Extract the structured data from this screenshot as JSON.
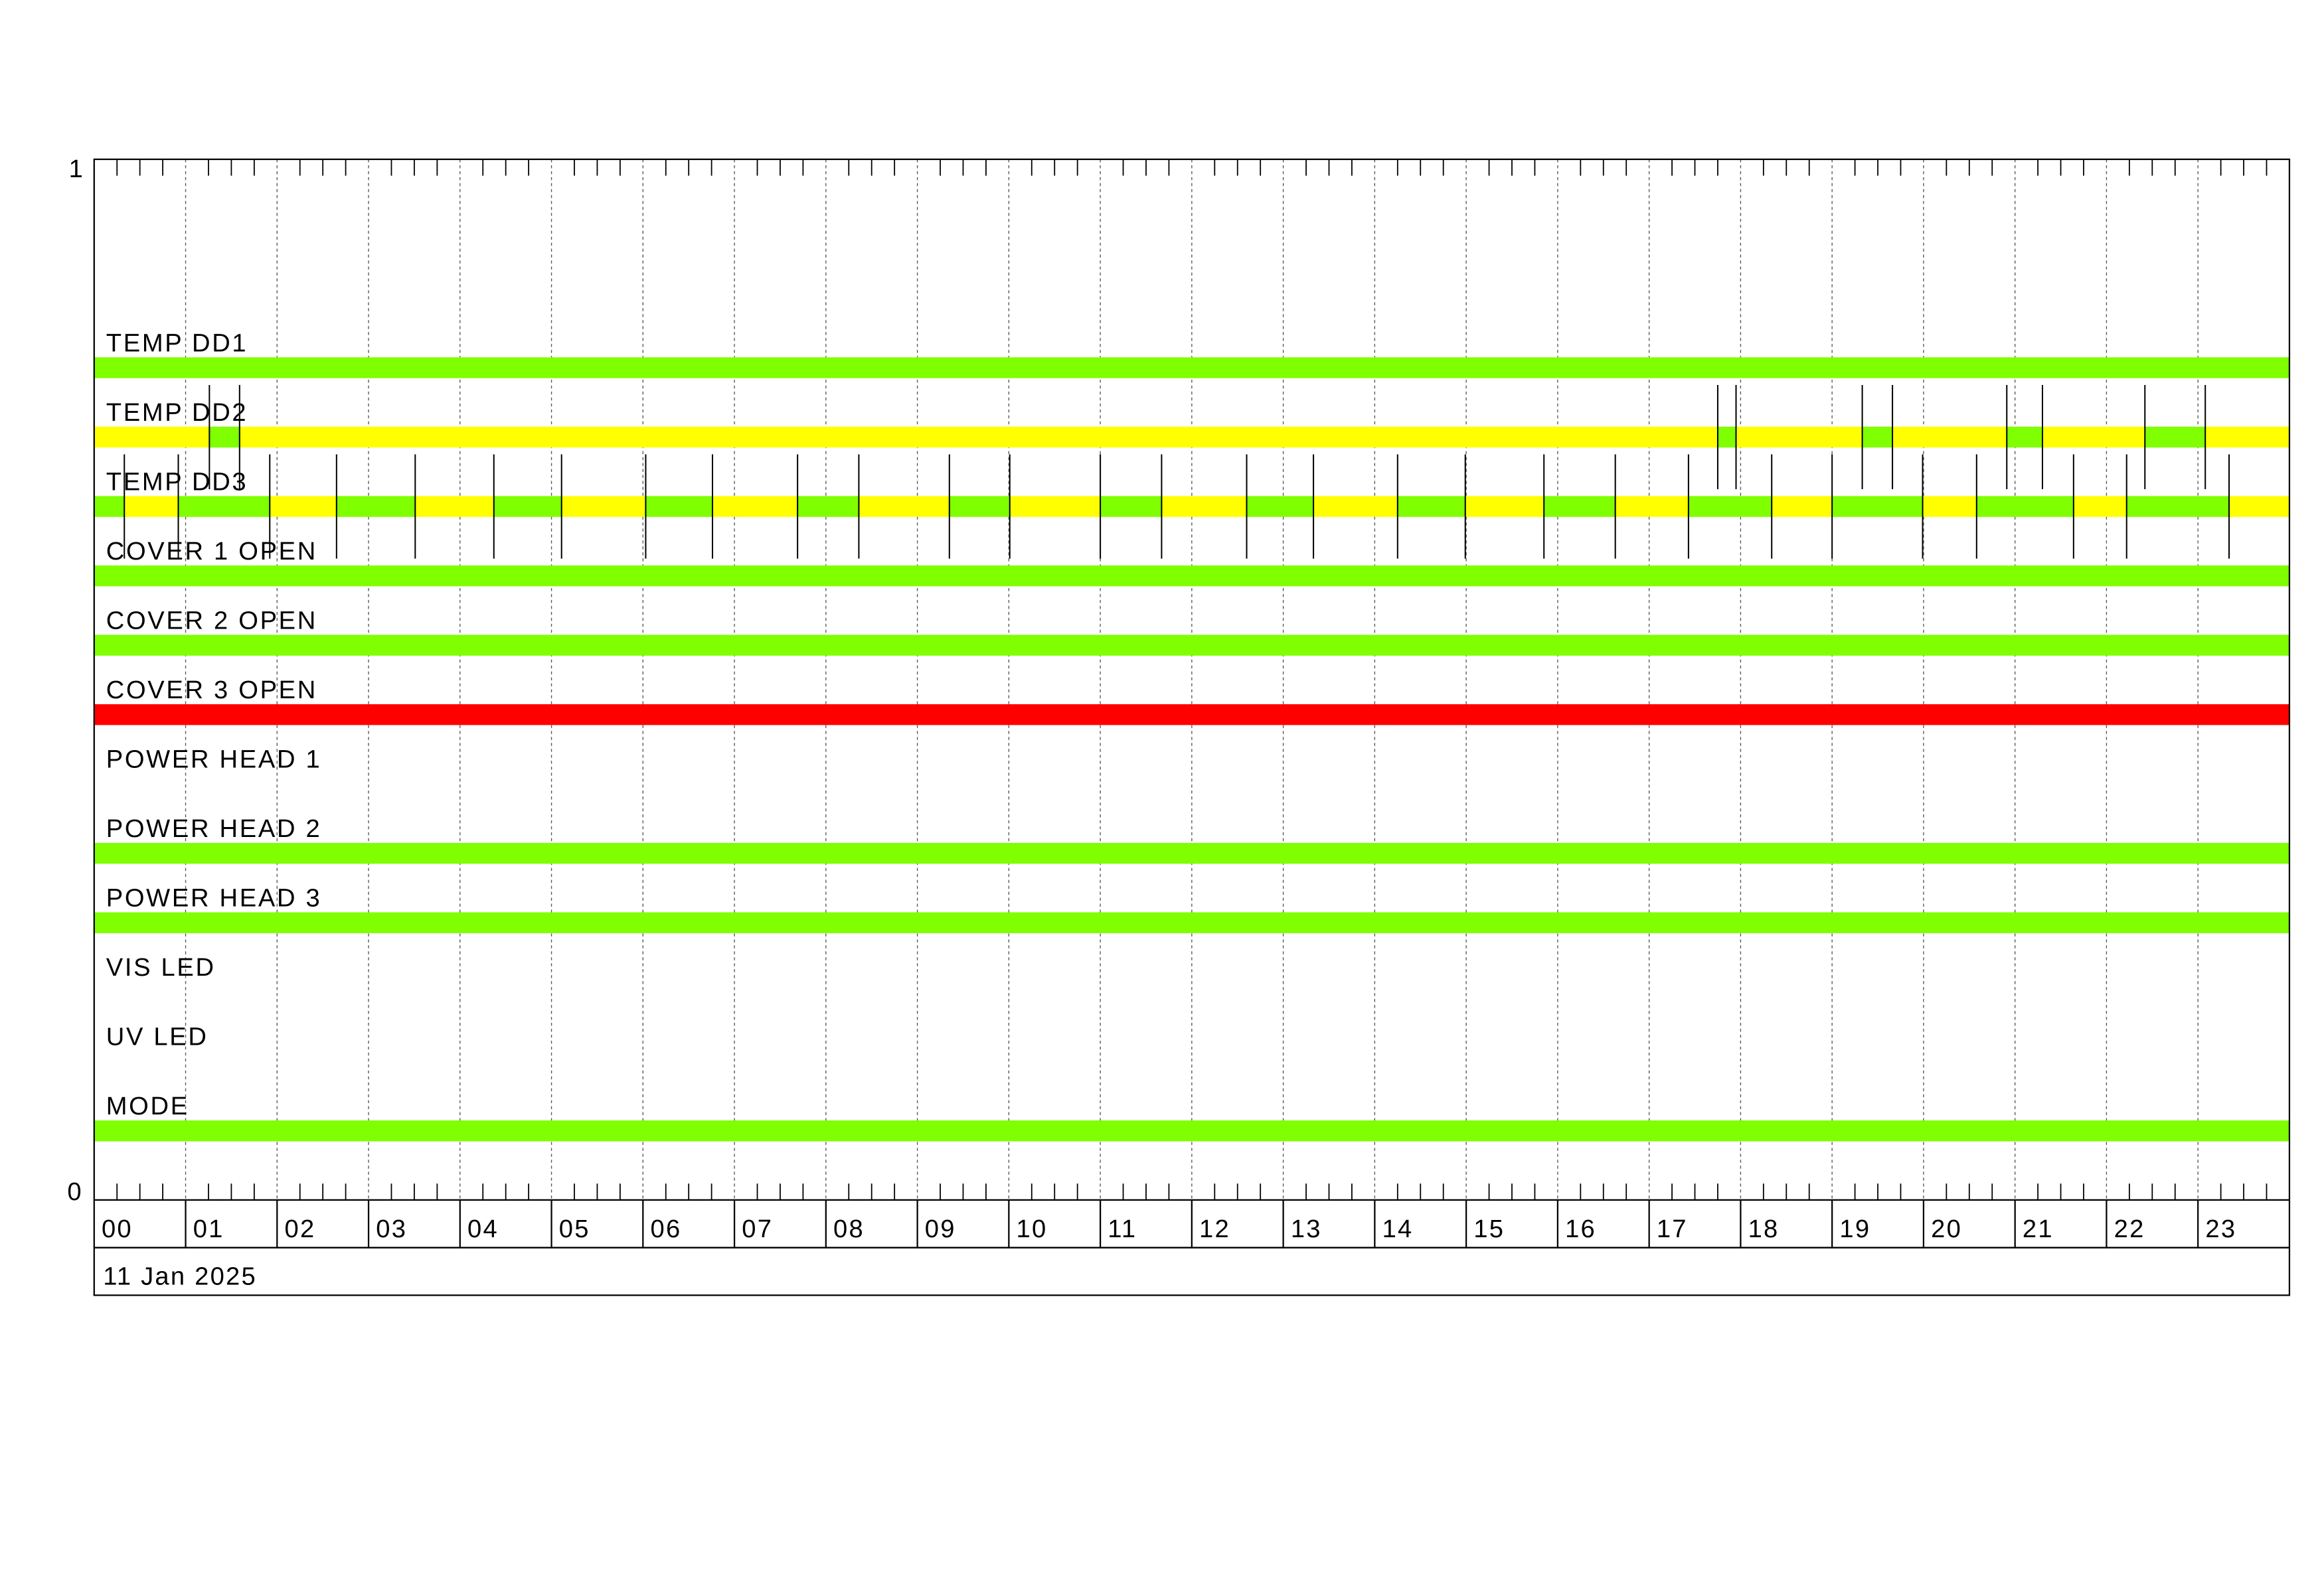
{
  "chart_data": {
    "type": "timeline",
    "y_axis": {
      "top_label": "1",
      "bottom_label": "0"
    },
    "x_axis": {
      "range_hours": [
        0,
        24
      ],
      "tick_labels": [
        "00",
        "01",
        "02",
        "03",
        "04",
        "05",
        "06",
        "07",
        "08",
        "09",
        "10",
        "11",
        "12",
        "13",
        "14",
        "15",
        "16",
        "17",
        "18",
        "19",
        "20",
        "21",
        "22",
        "23"
      ],
      "minor_ticks_per_hour": 4,
      "date_label": "11 Jan 2025"
    },
    "grid": true,
    "state_colors": {
      "green": "#7fff00",
      "yellow": "#ffff00",
      "red": "#ff0000"
    },
    "rows": [
      {
        "label": "TEMP DD1",
        "segments": [
          [
            0,
            24,
            "green"
          ]
        ]
      },
      {
        "label": "TEMP DD2",
        "segments": [
          [
            0,
            1.26,
            "yellow"
          ],
          [
            1.26,
            1.59,
            "green"
          ],
          [
            1.59,
            17.75,
            "yellow"
          ],
          [
            17.75,
            17.95,
            "green"
          ],
          [
            17.95,
            19.33,
            "yellow"
          ],
          [
            19.33,
            19.66,
            "green"
          ],
          [
            19.66,
            20.91,
            "yellow"
          ],
          [
            20.91,
            21.3,
            "green"
          ],
          [
            21.3,
            22.42,
            "yellow"
          ],
          [
            22.42,
            23.08,
            "green"
          ],
          [
            23.08,
            24,
            "yellow"
          ]
        ]
      },
      {
        "label": "TEMP DD3",
        "segments": [
          [
            0,
            0.33,
            "green"
          ],
          [
            0.33,
            0.92,
            "yellow"
          ],
          [
            0.92,
            1.92,
            "green"
          ],
          [
            1.92,
            2.65,
            "yellow"
          ],
          [
            2.65,
            3.51,
            "green"
          ],
          [
            3.51,
            4.37,
            "yellow"
          ],
          [
            4.37,
            5.11,
            "green"
          ],
          [
            5.11,
            6.03,
            "yellow"
          ],
          [
            6.03,
            6.76,
            "green"
          ],
          [
            6.76,
            7.69,
            "yellow"
          ],
          [
            7.69,
            8.36,
            "green"
          ],
          [
            8.36,
            9.35,
            "yellow"
          ],
          [
            9.35,
            10.01,
            "green"
          ],
          [
            10.01,
            11.0,
            "yellow"
          ],
          [
            11.0,
            11.67,
            "green"
          ],
          [
            11.67,
            12.6,
            "yellow"
          ],
          [
            12.6,
            13.33,
            "green"
          ],
          [
            13.33,
            14.25,
            "yellow"
          ],
          [
            14.25,
            14.99,
            "green"
          ],
          [
            14.99,
            15.85,
            "yellow"
          ],
          [
            15.85,
            16.63,
            "green"
          ],
          [
            16.63,
            17.43,
            "yellow"
          ],
          [
            17.43,
            18.34,
            "green"
          ],
          [
            18.34,
            19.0,
            "yellow"
          ],
          [
            19.0,
            19.99,
            "green"
          ],
          [
            19.99,
            20.58,
            "yellow"
          ],
          [
            20.58,
            21.64,
            "green"
          ],
          [
            21.64,
            22.22,
            "yellow"
          ],
          [
            22.22,
            23.34,
            "green"
          ],
          [
            23.34,
            24,
            "yellow"
          ]
        ]
      },
      {
        "label": "COVER 1 OPEN",
        "segments": [
          [
            0,
            24,
            "green"
          ]
        ]
      },
      {
        "label": "COVER 2 OPEN",
        "segments": [
          [
            0,
            24,
            "green"
          ]
        ]
      },
      {
        "label": "COVER 3 OPEN",
        "segments": [
          [
            0,
            24,
            "red"
          ]
        ]
      },
      {
        "label": "POWER HEAD 1",
        "segments": []
      },
      {
        "label": "POWER HEAD 2",
        "segments": [
          [
            0,
            24,
            "green"
          ]
        ]
      },
      {
        "label": "POWER HEAD 3",
        "segments": [
          [
            0,
            24,
            "green"
          ]
        ]
      },
      {
        "label": "VIS LED",
        "segments": []
      },
      {
        "label": "UV LED",
        "segments": []
      },
      {
        "label": "MODE",
        "segments": [
          [
            0,
            24,
            "green"
          ]
        ]
      }
    ]
  }
}
